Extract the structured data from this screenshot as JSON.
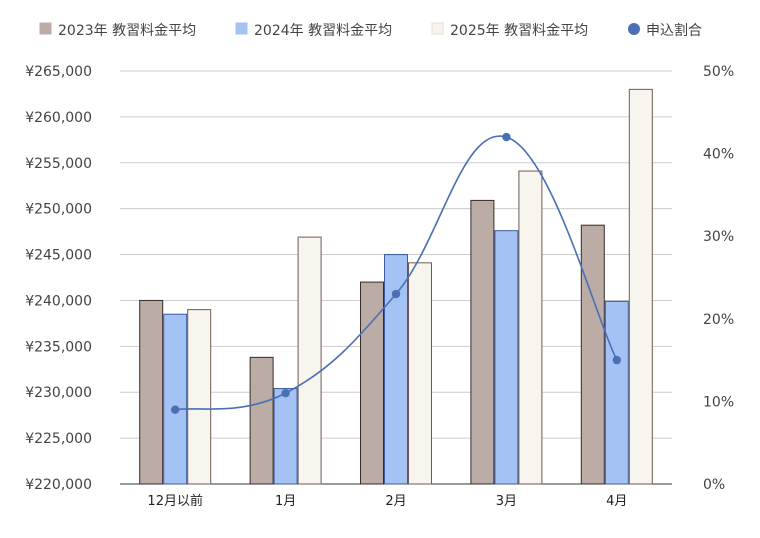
{
  "chart_data": {
    "type": "bar",
    "categories": [
      "12月以前",
      "1月",
      "2月",
      "3月",
      "4月"
    ],
    "series": [
      {
        "name": "2023年 教習料金平均",
        "type": "bar",
        "axis": "left",
        "color": "#bcaca6",
        "stroke": "#3a2a28",
        "values": [
          240000,
          233800,
          242000,
          250900,
          248200
        ]
      },
      {
        "name": "2024年 教習料金平均",
        "type": "bar",
        "axis": "left",
        "color": "#a4c2f4",
        "stroke": "#3d5a9e",
        "values": [
          238500,
          230400,
          245000,
          247600,
          239900
        ]
      },
      {
        "name": "2025年 教習料金平均",
        "type": "bar",
        "axis": "left",
        "color": "#f8f4ee",
        "stroke": "#6e5a56",
        "values": [
          239000,
          246900,
          244100,
          254100,
          263000
        ]
      },
      {
        "name": "申込割合",
        "type": "line",
        "axis": "right",
        "color": "#4a6fb5",
        "values": [
          9,
          11,
          23,
          42,
          15
        ]
      }
    ],
    "left_axis": {
      "min": 220000,
      "max": 265000,
      "step": 5000,
      "ticks": [
        "¥220,000",
        "¥225,000",
        "¥230,000",
        "¥235,000",
        "¥240,000",
        "¥245,000",
        "¥250,000",
        "¥255,000",
        "¥260,000",
        "¥265,000"
      ]
    },
    "right_axis": {
      "min": 0,
      "max": 50,
      "step": 10,
      "ticks": [
        "0%",
        "10%",
        "20%",
        "30%",
        "40%",
        "50%"
      ]
    },
    "legend_position": "top",
    "grid": true
  }
}
